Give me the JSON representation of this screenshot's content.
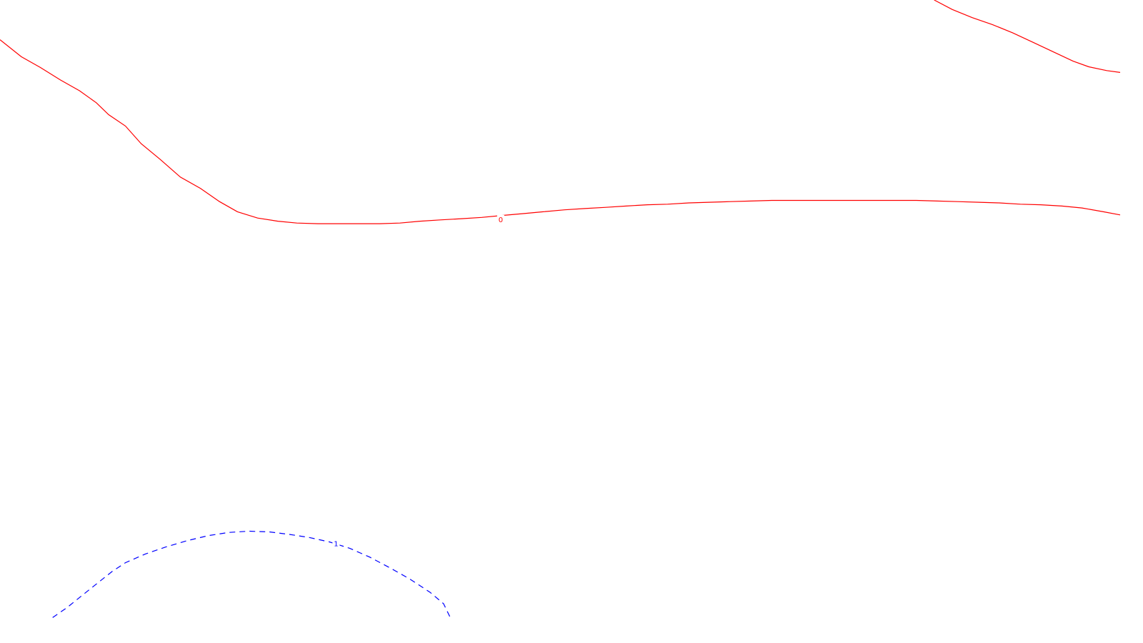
{
  "chart_data": {
    "type": "contour",
    "title": "",
    "xlabel": "",
    "ylabel": "",
    "grid": false,
    "legend": "none",
    "series": [
      {
        "level": "0",
        "color": "#ff0000",
        "style": "solid",
        "points": [
          [
            0.0,
            0.937
          ],
          [
            0.019,
            0.91
          ],
          [
            0.036,
            0.893
          ],
          [
            0.054,
            0.873
          ],
          [
            0.071,
            0.856
          ],
          [
            0.086,
            0.837
          ],
          [
            0.097,
            0.818
          ],
          [
            0.112,
            0.8
          ],
          [
            0.126,
            0.772
          ],
          [
            0.143,
            0.747
          ],
          [
            0.161,
            0.719
          ],
          [
            0.179,
            0.701
          ],
          [
            0.196,
            0.68
          ],
          [
            0.212,
            0.664
          ],
          [
            0.23,
            0.654
          ],
          [
            0.248,
            0.649
          ],
          [
            0.265,
            0.646
          ],
          [
            0.284,
            0.645
          ],
          [
            0.302,
            0.645
          ],
          [
            0.32,
            0.645
          ],
          [
            0.339,
            0.645
          ],
          [
            0.357,
            0.646
          ],
          [
            0.375,
            0.649
          ],
          [
            0.393,
            0.651
          ],
          [
            0.412,
            0.653
          ],
          [
            0.43,
            0.655
          ],
          [
            0.448,
            0.658
          ],
          [
            0.467,
            0.661
          ],
          [
            0.485,
            0.664
          ],
          [
            0.504,
            0.667
          ],
          [
            0.522,
            0.669
          ],
          [
            0.541,
            0.671
          ],
          [
            0.559,
            0.673
          ],
          [
            0.578,
            0.675
          ],
          [
            0.596,
            0.676
          ],
          [
            0.615,
            0.678
          ],
          [
            0.633,
            0.679
          ],
          [
            0.652,
            0.68
          ],
          [
            0.67,
            0.681
          ],
          [
            0.689,
            0.682
          ],
          [
            0.707,
            0.682
          ],
          [
            0.726,
            0.682
          ],
          [
            0.744,
            0.682
          ],
          [
            0.763,
            0.682
          ],
          [
            0.781,
            0.682
          ],
          [
            0.8,
            0.682
          ],
          [
            0.818,
            0.682
          ],
          [
            0.837,
            0.681
          ],
          [
            0.855,
            0.68
          ],
          [
            0.874,
            0.679
          ],
          [
            0.892,
            0.678
          ],
          [
            0.911,
            0.676
          ],
          [
            0.929,
            0.675
          ],
          [
            0.948,
            0.673
          ],
          [
            0.966,
            0.67
          ],
          [
            0.985,
            0.664
          ],
          [
            1.0,
            0.659
          ]
        ],
        "label_pos": [
          0.447,
          0.652
        ]
      },
      {
        "level": "0",
        "color": "#ff0000",
        "style": "solid",
        "points": [
          [
            0.834,
            1.0
          ],
          [
            0.85,
            0.985
          ],
          [
            0.868,
            0.972
          ],
          [
            0.886,
            0.961
          ],
          [
            0.904,
            0.948
          ],
          [
            0.922,
            0.933
          ],
          [
            0.94,
            0.918
          ],
          [
            0.958,
            0.903
          ],
          [
            0.972,
            0.894
          ],
          [
            0.988,
            0.888
          ],
          [
            1.0,
            0.885
          ]
        ]
      },
      {
        "level": "1",
        "color": "#0000ff",
        "style": "dashed",
        "points": [
          [
            0.047,
            0.02
          ],
          [
            0.06,
            0.036
          ],
          [
            0.074,
            0.056
          ],
          [
            0.088,
            0.076
          ],
          [
            0.1,
            0.093
          ],
          [
            0.112,
            0.107
          ],
          [
            0.13,
            0.121
          ],
          [
            0.148,
            0.132
          ],
          [
            0.167,
            0.142
          ],
          [
            0.186,
            0.15
          ],
          [
            0.204,
            0.155
          ],
          [
            0.222,
            0.157
          ],
          [
            0.24,
            0.156
          ],
          [
            0.258,
            0.152
          ],
          [
            0.276,
            0.147
          ],
          [
            0.294,
            0.14
          ],
          [
            0.312,
            0.13
          ],
          [
            0.33,
            0.116
          ],
          [
            0.348,
            0.099
          ],
          [
            0.366,
            0.081
          ],
          [
            0.384,
            0.06
          ],
          [
            0.396,
            0.042
          ],
          [
            0.402,
            0.02
          ]
        ],
        "label_pos": [
          0.3,
          0.138
        ]
      }
    ]
  }
}
